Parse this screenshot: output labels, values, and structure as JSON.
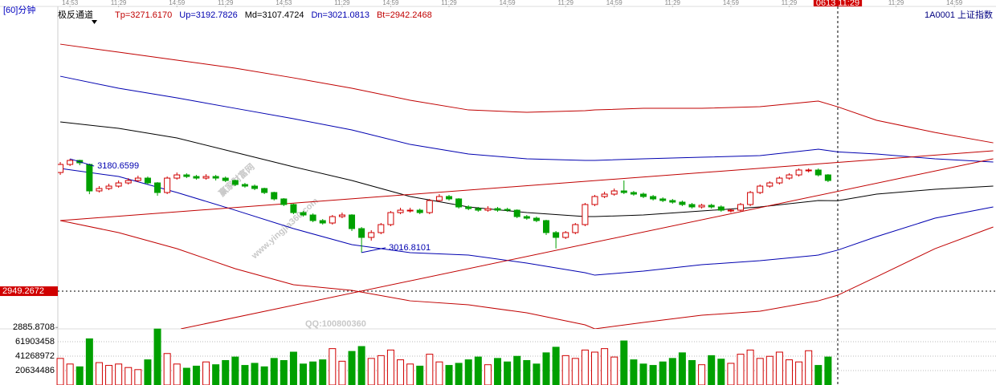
{
  "period": "[60]分钟",
  "symbol": "1A0001 上证指数",
  "watermark": [
    "赢家财富网",
    "www.yingjia360.com",
    "QQ:100800360"
  ],
  "chart_data": [
    {
      "type": "candlestick",
      "title": "极反通道",
      "up_color": "#d00000",
      "down_color": "#00a000",
      "xlim": [
        -0.5,
        96.2
      ],
      "ylim": [
        2883.4,
        3447.2
      ],
      "xticks": [
        {
          "value": 1,
          "label": "14:53"
        },
        {
          "value": 6,
          "label": "11:29"
        },
        {
          "value": 12,
          "label": "14:59"
        },
        {
          "value": 17,
          "label": "11:29"
        },
        {
          "value": 23,
          "label": "14:53"
        },
        {
          "value": 29,
          "label": "11:29"
        },
        {
          "value": 34,
          "label": "14:59"
        },
        {
          "value": 40,
          "label": "11:29"
        },
        {
          "value": 46,
          "label": "14:59"
        },
        {
          "value": 52,
          "label": "11:29"
        },
        {
          "value": 57,
          "label": "14:59"
        },
        {
          "value": 63,
          "label": "11:29"
        },
        {
          "value": 69,
          "label": "14:59"
        },
        {
          "value": 75,
          "label": "11:29"
        },
        {
          "value": 80,
          "label": "0613 11:29"
        },
        {
          "value": 86,
          "label": "11:29"
        },
        {
          "value": 92,
          "label": "14:59"
        }
      ],
      "highlight_xticks": [
        14
      ],
      "yticks": [
        2949.2672,
        2885.8708
      ],
      "highlight_yticks": [
        0
      ],
      "open": [
        3156.8,
        3170.9,
        3177.9,
        3170.9,
        3124.6,
        3128.8,
        3133.0,
        3138.6,
        3142.8,
        3147.0,
        3138.6,
        3121.8,
        3147.0,
        3152.6,
        3149.8,
        3147.0,
        3149.8,
        3147.0,
        3142.8,
        3135.8,
        3133.0,
        3128.8,
        3121.8,
        3110.6,
        3100.8,
        3086.7,
        3082.5,
        3072.7,
        3068.5,
        3079.7,
        3082.5,
        3058.7,
        3043.3,
        3051.7,
        3065.7,
        3086.7,
        3089.5,
        3090.9,
        3086.7,
        3107.8,
        3114.8,
        3110.6,
        3096.6,
        3093.7,
        3090.9,
        3093.7,
        3092.3,
        3090.9,
        3079.7,
        3076.9,
        3072.7,
        3051.7,
        3043.3,
        3051.7,
        3065.7,
        3100.8,
        3114.8,
        3119.0,
        3124.6,
        3121.8,
        3119.0,
        3114.8,
        3110.6,
        3107.8,
        3105.0,
        3100.8,
        3096.6,
        3099.4,
        3096.6,
        3089.5,
        3090.9,
        3100.8,
        3121.8,
        3133.0,
        3138.6,
        3147.0,
        3152.6,
        3159.7,
        3161.1,
        3152.6
      ],
      "high": [
        3175.1,
        3180.6599,
        3179.1,
        3172.3,
        3133.0,
        3137.2,
        3142.8,
        3147.0,
        3151.2,
        3149.8,
        3140.0,
        3149.8,
        3156.8,
        3155.4,
        3152.6,
        3153.9,
        3152.6,
        3149.8,
        3144.2,
        3138.6,
        3135.8,
        3130.2,
        3123.2,
        3112.0,
        3102.2,
        3089.5,
        3085.3,
        3075.5,
        3082.5,
        3086.7,
        3083.9,
        3061.5,
        3055.9,
        3068.5,
        3089.5,
        3095.1,
        3095.1,
        3093.7,
        3110.6,
        3119.0,
        3117.6,
        3112.0,
        3099.4,
        3096.6,
        3097.9,
        3096.6,
        3095.1,
        3092.3,
        3082.5,
        3079.7,
        3074.1,
        3054.5,
        3054.5,
        3068.5,
        3103.6,
        3117.6,
        3123.2,
        3128.8,
        3142.8,
        3124.6,
        3121.8,
        3117.6,
        3113.4,
        3110.6,
        3107.8,
        3103.6,
        3102.2,
        3102.2,
        3099.4,
        3093.7,
        3103.6,
        3124.6,
        3135.8,
        3141.4,
        3149.8,
        3155.4,
        3163.9,
        3163.9,
        3163.9,
        3154.0
      ],
      "low": [
        3152.6,
        3168.1,
        3169.5,
        3118.9,
        3121.8,
        3126.0,
        3130.2,
        3135.8,
        3140.0,
        3135.8,
        3116.2,
        3119.0,
        3144.2,
        3147.0,
        3144.2,
        3144.2,
        3142.8,
        3140.0,
        3133.0,
        3130.2,
        3126.0,
        3119.0,
        3107.8,
        3098.0,
        3083.9,
        3079.7,
        3069.9,
        3065.7,
        3065.7,
        3076.9,
        3054.5,
        3016.8101,
        3037.6,
        3048.9,
        3062.9,
        3083.9,
        3086.7,
        3083.9,
        3083.9,
        3105.0,
        3107.8,
        3093.7,
        3090.9,
        3088.1,
        3088.1,
        3088.1,
        3088.1,
        3076.9,
        3074.1,
        3069.9,
        3047.5,
        3024.0,
        3040.5,
        3048.9,
        3062.9,
        3098.0,
        3112.0,
        3116.2,
        3119.0,
        3116.2,
        3112.0,
        3107.8,
        3105.0,
        3102.2,
        3098.0,
        3093.7,
        3093.7,
        3093.7,
        3088.1,
        3086.7,
        3088.1,
        3098.0,
        3119.0,
        3130.2,
        3135.8,
        3144.2,
        3149.8,
        3156.8,
        3149.8,
        3140.0
      ],
      "close": [
        3170.9,
        3177.9,
        3173.7,
        3124.6,
        3128.8,
        3133.0,
        3138.6,
        3142.8,
        3147.0,
        3138.6,
        3121.8,
        3147.0,
        3152.6,
        3149.8,
        3147.0,
        3149.8,
        3147.0,
        3142.8,
        3135.8,
        3133.0,
        3128.8,
        3121.8,
        3110.6,
        3100.8,
        3086.7,
        3082.5,
        3072.7,
        3068.5,
        3079.7,
        3082.5,
        3058.7,
        3043.3,
        3051.7,
        3065.7,
        3086.7,
        3090.9,
        3090.9,
        3086.7,
        3107.8,
        3114.8,
        3110.6,
        3096.6,
        3093.7,
        3090.9,
        3093.7,
        3090.9,
        3090.9,
        3079.7,
        3076.9,
        3072.7,
        3051.7,
        3043.3,
        3051.7,
        3065.7,
        3100.8,
        3114.8,
        3119.0,
        3124.6,
        3121.8,
        3119.0,
        3114.8,
        3110.6,
        3107.8,
        3105.0,
        3100.8,
        3096.6,
        3099.4,
        3096.6,
        3090.9,
        3090.9,
        3100.8,
        3121.8,
        3133.0,
        3138.6,
        3147.0,
        3152.6,
        3161.1,
        3161.1,
        3152.6,
        3142.8
      ],
      "series": [
        {
          "name": "Tp=3271.6170",
          "color": "#c00000",
          "x": [
            0,
            6,
            12,
            18,
            24,
            30,
            36,
            42,
            48,
            54,
            55,
            60,
            66,
            72,
            78,
            80,
            84,
            90,
            96
          ],
          "values": [
            3381.2,
            3367.2,
            3353.2,
            3339.2,
            3322.3,
            3304.1,
            3283.1,
            3266.2,
            3262.0,
            3264.8,
            3266.2,
            3269.0,
            3269.0,
            3271.9,
            3281.7,
            3271.617,
            3248.0,
            3226.9,
            3208.7
          ]
        },
        {
          "name": "Up=3192.7826",
          "color": "#0000b0",
          "x": [
            0,
            6,
            12,
            18,
            24,
            30,
            36,
            42,
            48,
            54,
            55,
            60,
            66,
            72,
            78,
            80,
            84,
            90,
            96
          ],
          "values": [
            3325.1,
            3304.1,
            3287.3,
            3269.0,
            3250.8,
            3231.2,
            3205.9,
            3189.1,
            3180.7,
            3177.9,
            3177.9,
            3180.7,
            3183.5,
            3186.3,
            3197.5,
            3192.7826,
            3189.1,
            3180.7,
            3175.1
          ]
        },
        {
          "name": "Md=3107.4724",
          "color": "#000000",
          "x": [
            0,
            6,
            12,
            18,
            24,
            30,
            36,
            42,
            48,
            54,
            55,
            60,
            66,
            72,
            78,
            80,
            84,
            90,
            96
          ],
          "values": [
            3245.2,
            3234.0,
            3217.2,
            3191.9,
            3166.7,
            3142.8,
            3114.8,
            3096.6,
            3086.7,
            3079.7,
            3079.7,
            3082.5,
            3089.5,
            3096.6,
            3107.8,
            3107.4724,
            3119.0,
            3127.4,
            3133.0
          ]
        },
        {
          "name": "Dn=3021.0813",
          "color": "#0000b0",
          "x": [
            0,
            6,
            12,
            18,
            24,
            30,
            36,
            42,
            48,
            54,
            55,
            60,
            66,
            72,
            78,
            80,
            84,
            90,
            96
          ],
          "values": [
            3163.9,
            3149.8,
            3121.8,
            3090.9,
            3058.7,
            3030.6,
            3016.6,
            3012.4,
            2998.4,
            2981.6,
            2977.3,
            2984.4,
            2995.6,
            3002.6,
            3012.4,
            3021.0813,
            3044.7,
            3076.9,
            3096.6
          ]
        },
        {
          "name": "Bt=2942.2468",
          "color": "#c00000",
          "x": [
            0,
            6,
            12,
            18,
            24,
            30,
            36,
            42,
            48,
            54,
            55,
            60,
            66,
            72,
            78,
            80,
            84,
            90,
            96
          ],
          "values": [
            3072.7,
            3051.7,
            3023.6,
            2988.6,
            2960.5,
            2950.7,
            2932.4,
            2925.4,
            2911.4,
            2890.4,
            2883.4,
            2894.6,
            2907.2,
            2914.2,
            2932.4,
            2942.2468,
            2974.5,
            3023.6,
            3061.5
          ]
        }
      ],
      "trendlines": [
        {
          "color": "#c00000",
          "x": [
            0,
            96
          ],
          "values": [
            3072.7,
            3194.7
          ]
        },
        {
          "color": "#c00000",
          "x": [
            12.4,
            96
          ],
          "values": [
            2883.4,
            3180.7
          ]
        }
      ],
      "annotations": [
        {
          "x": 1,
          "value": 3180.6599
        },
        {
          "x": 31,
          "value": 3016.8101
        }
      ]
    },
    {
      "type": "bar",
      "ylim": [
        0,
        80245200
      ],
      "yticks": [
        61903458,
        41268972,
        20634486
      ],
      "values": [
        38000000,
        30000000,
        26000000,
        66000000,
        32000000,
        28000000,
        30000000,
        25000000,
        22000000,
        36000000,
        80000000,
        45000000,
        30000000,
        24000000,
        27000000,
        33000000,
        29000000,
        35000000,
        40000000,
        28000000,
        31000000,
        26000000,
        38000000,
        35000000,
        47000000,
        30000000,
        33000000,
        36000000,
        52000000,
        34000000,
        48000000,
        55000000,
        38000000,
        42000000,
        50000000,
        36000000,
        30000000,
        27000000,
        44000000,
        33000000,
        28000000,
        31000000,
        36000000,
        40000000,
        29000000,
        38000000,
        33000000,
        41000000,
        35000000,
        30000000,
        46000000,
        54000000,
        42000000,
        38000000,
        50000000,
        47000000,
        52000000,
        40000000,
        63000000,
        36000000,
        30000000,
        28000000,
        33000000,
        38000000,
        46000000,
        35000000,
        29000000,
        42000000,
        37000000,
        31000000,
        44000000,
        50000000,
        38000000,
        41000000,
        47000000,
        36000000,
        33000000,
        49000000,
        28000000,
        40000000
      ]
    }
  ]
}
